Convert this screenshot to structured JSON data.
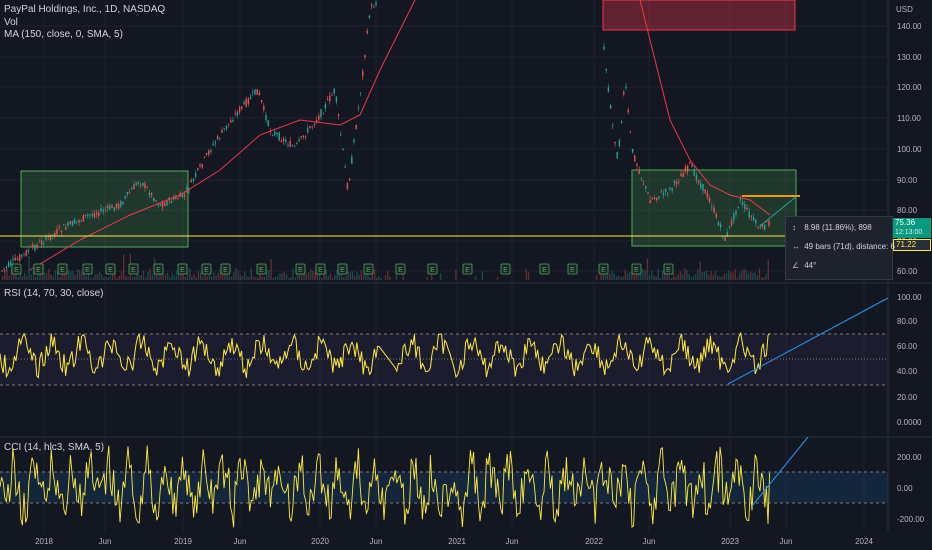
{
  "header": {
    "symbol_line": "PayPal Holdings, Inc., 1D, NASDAQ",
    "vol_label": "Vol",
    "ma_label": "MA (150, close, 0, SMA, 5)"
  },
  "price_axis": {
    "currency": "USD",
    "ticks": [
      "140.00",
      "130.00",
      "120.00",
      "110.00",
      "100.00",
      "90.00",
      "80.00",
      "70.00",
      "60.00"
    ],
    "last_price": "75.36",
    "last_price_sub": "12:13:00",
    "hline_price": "71.22"
  },
  "rsi_pane": {
    "label": "RSI (14, 70, 30, close)",
    "ticks": [
      "100.00",
      "80.00",
      "60.00",
      "40.00",
      "20.00",
      "0.0000"
    ]
  },
  "cci_pane": {
    "label": "CCI (14, hlc3, SMA, 5)",
    "ticks": [
      "200.00",
      "0.00",
      "-200.00"
    ]
  },
  "time_axis": {
    "labels": [
      "2018",
      "Jun",
      "2019",
      "Jun",
      "2020",
      "Jun",
      "2021",
      "Jun",
      "2022",
      "Jun",
      "2023",
      "Jun",
      "2024"
    ]
  },
  "measure_tool": {
    "price_change": "8.98 (11.86%), 898",
    "bars_distance": "49 bars (71d), distance: 6",
    "angle": "44°"
  },
  "earnings_markers": [
    "E",
    "E",
    "E",
    "E",
    "E",
    "E",
    "E",
    "E",
    "E",
    "E",
    "E",
    "E",
    "E",
    "E",
    "E",
    "E",
    "E",
    "E",
    "E",
    "E",
    "E",
    "E",
    "E",
    "E"
  ],
  "colors": {
    "background": "#131722",
    "ma_line": "#f23645",
    "rsi_line": "#ffeb3b",
    "cci_line": "#ffeb3b",
    "trend_line": "#2196f3",
    "support_line": "#ffeb3b",
    "box_green": "#4caf50",
    "box_red": "#f23645"
  }
}
